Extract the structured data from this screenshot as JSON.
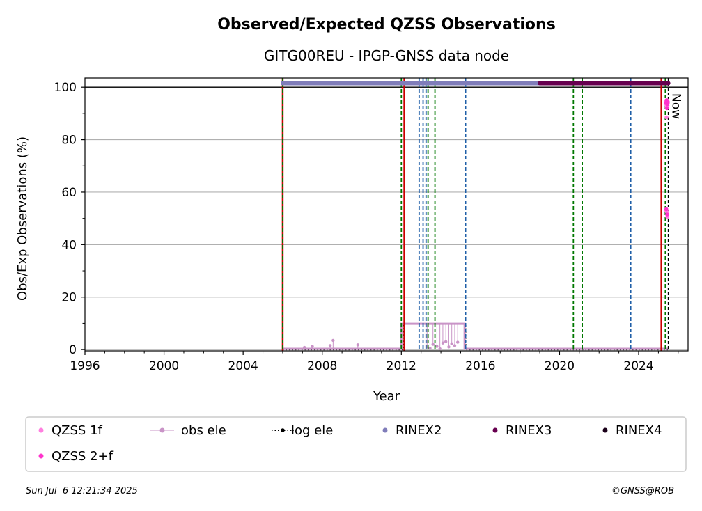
{
  "chart_data": {
    "type": "scatter",
    "title": "Observed/Expected QZSS Observations",
    "subtitle": "GITG00REU - IPGP-GNSS data node",
    "xlabel": "Year",
    "ylabel": "Obs/Exp Observations (%)",
    "xlim": [
      1996,
      2026.5
    ],
    "ylim": [
      -0.5,
      103.5
    ],
    "xticks": [
      "1996",
      "2000",
      "2004",
      "2008",
      "2012",
      "2016",
      "2020",
      "2024"
    ],
    "yticks": [
      "0",
      "20",
      "40",
      "60",
      "80",
      "100"
    ],
    "grid": "y",
    "reference_line_y": 100,
    "now_label": "Now",
    "now_x": 2025.5,
    "colors": {
      "qzss_1f": "#ff7fdf",
      "qzss_2f": "#ff33cc",
      "obs_ele": "#c994c7",
      "log_ele": "#000000",
      "rinex2": "#807dba",
      "rinex3": "#67004f",
      "rinex4": "#1a0019",
      "red_line": "#cc0000",
      "green_line": "#007700",
      "blue_line": "#1f5fa8",
      "grid": "#b0b0b0"
    },
    "vlines": {
      "red": [
        2006.0,
        2012.15,
        2025.15
      ],
      "green": [
        2006.0,
        2012.0,
        2013.35,
        2013.7,
        2020.7,
        2021.15,
        2025.35
      ],
      "blue": [
        2012.9,
        2013.1,
        2013.25,
        2015.25,
        2023.6
      ]
    },
    "rinex_bands": [
      {
        "name": "RINEX2",
        "x_start": 2006.0,
        "x_end": 2019.0,
        "y": 101.5
      },
      {
        "name": "RINEX3",
        "x_start": 2019.0,
        "x_end": 2025.5,
        "y": 101.5
      }
    ],
    "log_ele": {
      "segments": [
        [
          2006.0,
          0
        ],
        [
          2012.1,
          0
        ],
        [
          2012.1,
          9.8
        ],
        [
          2015.25,
          9.8
        ],
        [
          2015.25,
          0
        ],
        [
          2025.5,
          0
        ]
      ]
    },
    "obs_ele": {
      "base": [
        [
          2006.0,
          0.3
        ],
        [
          2012.0,
          0.3
        ],
        [
          2012.0,
          9.8
        ],
        [
          2015.2,
          9.8
        ],
        [
          2015.2,
          0.3
        ],
        [
          2025.5,
          0.3
        ]
      ],
      "spikes": [
        [
          2007.1,
          0.8
        ],
        [
          2007.5,
          1.2
        ],
        [
          2008.4,
          1.5
        ],
        [
          2008.55,
          3.5
        ],
        [
          2009.8,
          1.8
        ],
        [
          2013.3,
          1.0
        ],
        [
          2013.45,
          0.5
        ],
        [
          2013.6,
          2.0
        ],
        [
          2013.8,
          1.2
        ],
        [
          2013.95,
          0.3
        ],
        [
          2014.1,
          2.5
        ],
        [
          2014.25,
          3.0
        ],
        [
          2014.4,
          1.0
        ],
        [
          2014.55,
          2.2
        ],
        [
          2014.7,
          1.5
        ],
        [
          2014.85,
          2.8
        ]
      ]
    },
    "qzss_1f": [
      [
        2025.38,
        93.5
      ],
      [
        2025.4,
        94.5
      ],
      [
        2025.42,
        92.5
      ],
      [
        2025.44,
        95.0
      ],
      [
        2025.46,
        93.0
      ],
      [
        2025.48,
        94.0
      ],
      [
        2025.39,
        53.0
      ],
      [
        2025.43,
        52.5
      ],
      [
        2025.45,
        50.5
      ],
      [
        2025.41,
        88.5
      ]
    ],
    "qzss_2f": [
      [
        2025.37,
        94.0
      ],
      [
        2025.41,
        95.0
      ],
      [
        2025.43,
        92.0
      ],
      [
        2025.45,
        93.5
      ],
      [
        2025.47,
        94.5
      ],
      [
        2025.4,
        53.5
      ],
      [
        2025.44,
        51.5
      ]
    ],
    "legend": {
      "placement": "bottom",
      "entries": [
        {
          "key": "qzss_1f",
          "label": "QZSS 1f"
        },
        {
          "key": "obs_ele",
          "label": "obs ele"
        },
        {
          "key": "log_ele",
          "label": "log ele"
        },
        {
          "key": "rinex2",
          "label": "RINEX2"
        },
        {
          "key": "rinex3",
          "label": "RINEX3"
        },
        {
          "key": "rinex4",
          "label": "RINEX4"
        },
        {
          "key": "qzss_2f",
          "label": "QZSS 2+f"
        }
      ]
    }
  },
  "footer": {
    "timestamp": "Sun Jul  6 12:21:34 2025",
    "credit": "©GNSS@ROB"
  }
}
